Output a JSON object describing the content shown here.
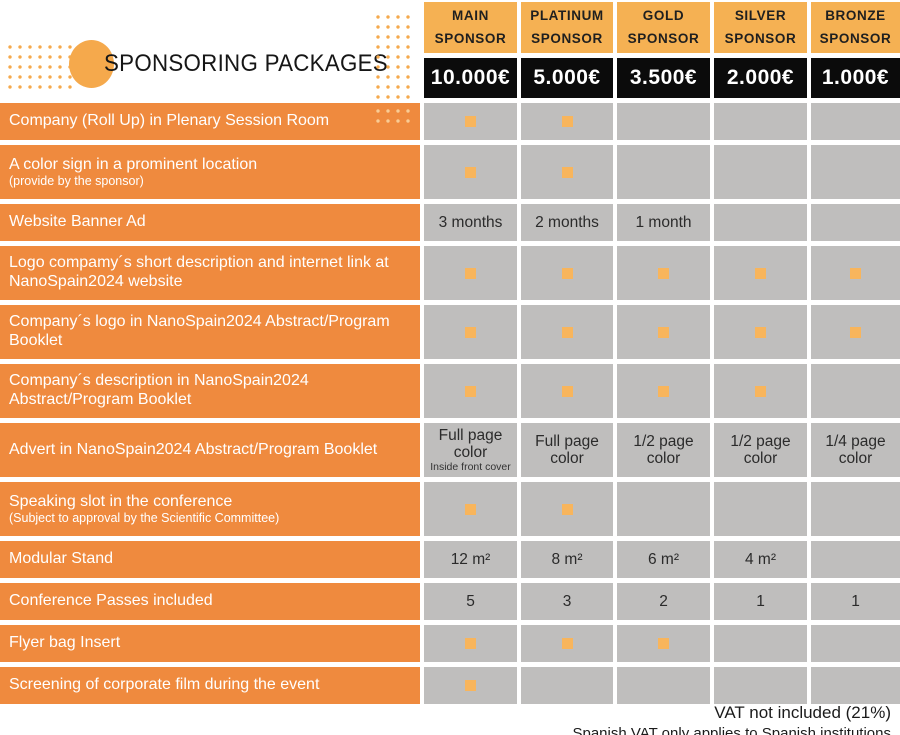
{
  "title": "SPONSORING PACKAGES",
  "columns": [
    {
      "name": "MAIN SPONSOR",
      "price": "10.000€"
    },
    {
      "name": "PLATINUM SPONSOR",
      "price": "5.000€"
    },
    {
      "name": "GOLD SPONSOR",
      "price": "3.500€"
    },
    {
      "name": "SILVER SPONSOR",
      "price": "2.000€"
    },
    {
      "name": "BRONZE SPONSOR",
      "price": "1.000€"
    }
  ],
  "rows": [
    {
      "label": "Company (Roll Up) in Plenary Session Room",
      "sublabel": "",
      "cells": [
        {
          "check": true
        },
        {
          "check": true
        },
        {},
        {},
        {}
      ]
    },
    {
      "label": "A color sign in a prominent location",
      "sublabel": "(provide by the sponsor)",
      "cells": [
        {
          "check": true
        },
        {
          "check": true
        },
        {},
        {},
        {}
      ]
    },
    {
      "label": "Website Banner Ad",
      "sublabel": "",
      "cells": [
        {
          "value": "3 months"
        },
        {
          "value": "2 months"
        },
        {
          "value": "1 month"
        },
        {},
        {}
      ]
    },
    {
      "label": "Logo compamy´s short description and internet link at NanoSpain2024 website",
      "sublabel": "",
      "cells": [
        {
          "check": true
        },
        {
          "check": true
        },
        {
          "check": true
        },
        {
          "check": true
        },
        {
          "check": true
        }
      ]
    },
    {
      "label": "Company´s logo in NanoSpain2024 Abstract/Program Booklet",
      "sublabel": "",
      "cells": [
        {
          "check": true
        },
        {
          "check": true
        },
        {
          "check": true
        },
        {
          "check": true
        },
        {
          "check": true
        }
      ]
    },
    {
      "label": "Company´s description in NanoSpain2024 Abstract/Program Booklet",
      "sublabel": "",
      "cells": [
        {
          "check": true
        },
        {
          "check": true
        },
        {
          "check": true
        },
        {
          "check": true
        },
        {}
      ]
    },
    {
      "label": "Advert in NanoSpain2024 Abstract/Program Booklet",
      "sublabel": "",
      "cells": [
        {
          "value": "Full page color",
          "note": "Inside front cover"
        },
        {
          "value": "Full page color"
        },
        {
          "value": "1/2 page color"
        },
        {
          "value": "1/2 page color"
        },
        {
          "value": "1/4 page color"
        }
      ]
    },
    {
      "label": "Speaking slot in the conference",
      "sublabel": "(Subject to approval by the Scientific Committee)",
      "cells": [
        {
          "check": true
        },
        {
          "check": true
        },
        {},
        {},
        {}
      ]
    },
    {
      "label": "Modular Stand",
      "sublabel": "",
      "cells": [
        {
          "value": "12 m²"
        },
        {
          "value": "8 m²"
        },
        {
          "value": "6 m²"
        },
        {
          "value": "4 m²"
        },
        {}
      ]
    },
    {
      "label": "Conference Passes included",
      "sublabel": "",
      "cells": [
        {
          "value": "5"
        },
        {
          "value": "3"
        },
        {
          "value": "2"
        },
        {
          "value": "1"
        },
        {
          "value": "1"
        }
      ]
    },
    {
      "label": "Flyer bag Insert",
      "sublabel": "",
      "cells": [
        {
          "check": true
        },
        {
          "check": true
        },
        {
          "check": true
        },
        {},
        {}
      ]
    },
    {
      "label": "Screening of corporate film during the event",
      "sublabel": "",
      "cells": [
        {
          "check": true
        },
        {},
        {},
        {},
        {}
      ]
    }
  ],
  "footer": {
    "vat_note": "VAT not included (21%)",
    "vat_detail": "Spanish VAT only applies to Spanish institutions"
  },
  "colors": {
    "label_orange": "#EF8A3E",
    "header_orange": "#F5B153",
    "accent_orange": "#F5A94C",
    "check_orange": "#F8B55C",
    "cell_gray": "#BFBEBD",
    "price_black": "#0B0B0B"
  }
}
